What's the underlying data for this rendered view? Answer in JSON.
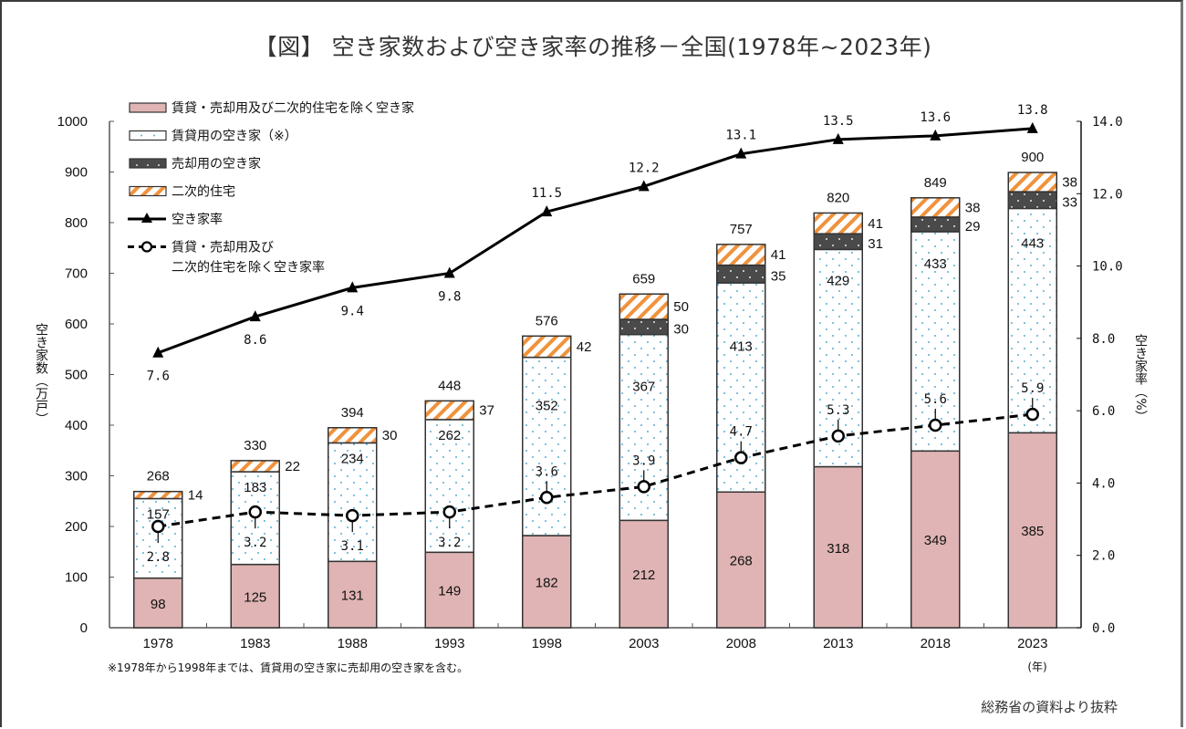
{
  "title": "【図】 空き家数および空き家率の推移－全国(1978年~2023年)",
  "footnote": "※1978年から1998年までは、賃貸用の空き家に売却用の空き家を含む。",
  "source": "総務省の資料より抜粋",
  "colors": {
    "other_vacant": "#e0b4b4",
    "rental_dots": "#5aaed0",
    "for_sale": "#4a4a4a",
    "secondary_stripe": "#f0923c",
    "line": "#000000"
  },
  "chart_data": {
    "type": "bar",
    "title": "【図】 空き家数および空き家率の推移－全国(1978年~2023年)",
    "xlabel": "(年)",
    "ylabel": "空き家数（万戸）",
    "y2label": "空き家率（%）",
    "ylim": [
      0,
      1000
    ],
    "y2lim": [
      0,
      14
    ],
    "yticks": [
      "0",
      "100",
      "200",
      "300",
      "400",
      "500",
      "600",
      "700",
      "800",
      "900",
      "1000"
    ],
    "y2ticks": [
      "0.0",
      "2.0",
      "4.0",
      "6.0",
      "8.0",
      "10.0",
      "12.0",
      "14.0"
    ],
    "categories": [
      "1978",
      "1983",
      "1988",
      "1993",
      "1998",
      "2003",
      "2008",
      "2013",
      "2018",
      "2023"
    ],
    "stacked": true,
    "legend_position": "top-left",
    "series": [
      {
        "name": "賃貸・売却用及び二次的住宅を除く空き家",
        "kind": "bar",
        "values": [
          98,
          125,
          131,
          149,
          182,
          212,
          268,
          318,
          349,
          385
        ]
      },
      {
        "name": "賃貸用の空き家（※）",
        "kind": "bar",
        "values": [
          157,
          183,
          234,
          262,
          352,
          367,
          413,
          429,
          433,
          443
        ]
      },
      {
        "name": "売却用の空き家",
        "kind": "bar",
        "values": [
          null,
          null,
          null,
          null,
          null,
          30,
          35,
          31,
          29,
          33
        ]
      },
      {
        "name": "二次的住宅",
        "kind": "bar",
        "values": [
          14,
          22,
          30,
          37,
          42,
          50,
          41,
          41,
          38,
          38
        ]
      },
      {
        "name": "空き家率",
        "kind": "line",
        "axis": "right",
        "values": [
          7.6,
          8.6,
          9.4,
          9.8,
          11.5,
          12.2,
          13.1,
          13.5,
          13.6,
          13.8
        ]
      },
      {
        "name": "賃貸・売却用及び二次的住宅を除く空き家率",
        "kind": "line-dashed",
        "axis": "right",
        "values": [
          2.8,
          3.2,
          3.1,
          3.2,
          3.6,
          3.9,
          4.7,
          5.3,
          5.6,
          5.9
        ]
      }
    ],
    "totals": [
      268,
      330,
      394,
      448,
      576,
      659,
      757,
      820,
      849,
      900
    ],
    "legend": [
      "賃貸・売却用及び二次的住宅を除く空き家",
      "賃貸用の空き家（※）",
      "売却用の空き家",
      "二次的住宅",
      "空き家率",
      "賃貸・売却用及び",
      "二次的住宅を除く空き家率"
    ]
  }
}
